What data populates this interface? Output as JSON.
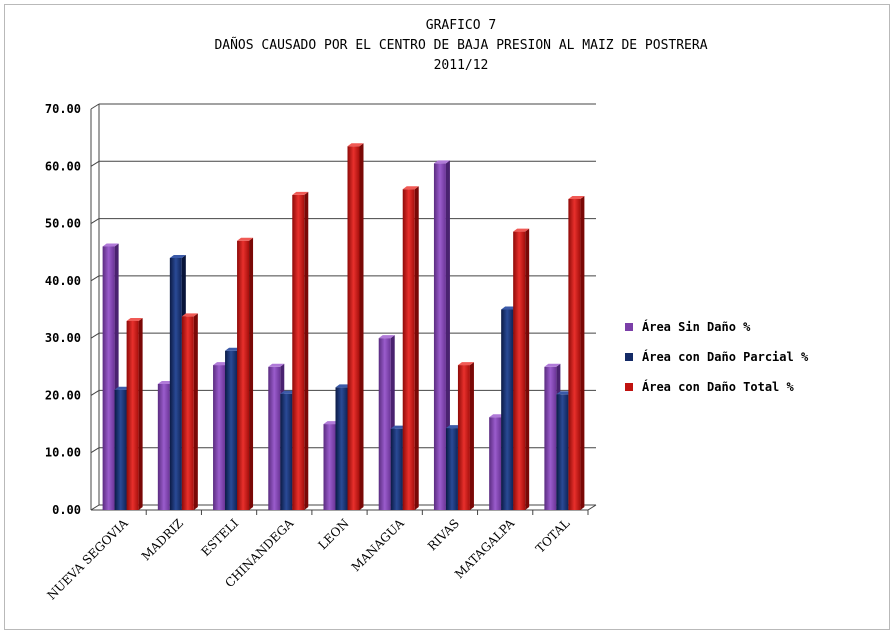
{
  "chart_data": {
    "type": "bar",
    "title_lines": [
      "GRAFICO 7",
      "DAÑOS CAUSADO POR EL CENTRO DE BAJA PRESION AL MAIZ DE POSTRERA",
      "2011/12"
    ],
    "xlabel": "",
    "ylabel": "",
    "ylim": [
      0,
      70
    ],
    "yticks": [
      "0.00",
      "10.00",
      "20.00",
      "30.00",
      "40.00",
      "50.00",
      "60.00",
      "70.00"
    ],
    "grid": true,
    "legend_position": "right",
    "categories": [
      "NUEVA SEGOVIA",
      "MADRIZ",
      "ESTELI",
      "CHINANDEGA",
      "LEON",
      "MANAGUA",
      "RIVAS",
      "MATAGALPA",
      "TOTAL"
    ],
    "series": [
      {
        "name": "Área Sin Daño %",
        "color": "#7b3fa8",
        "values": [
          46.0,
          22.0,
          25.3,
          25.0,
          15.0,
          30.0,
          60.5,
          16.2,
          25.0
        ]
      },
      {
        "name": "Área con Daño Parcial %",
        "color": "#142a66",
        "values": [
          21.0,
          44.0,
          27.8,
          20.3,
          21.4,
          14.2,
          14.3,
          35.0,
          20.2
        ]
      },
      {
        "name": "Área con Daño Total %",
        "color": "#c0120f",
        "values": [
          33.0,
          33.8,
          47.0,
          55.0,
          63.5,
          56.0,
          25.3,
          48.6,
          54.3
        ]
      }
    ]
  }
}
